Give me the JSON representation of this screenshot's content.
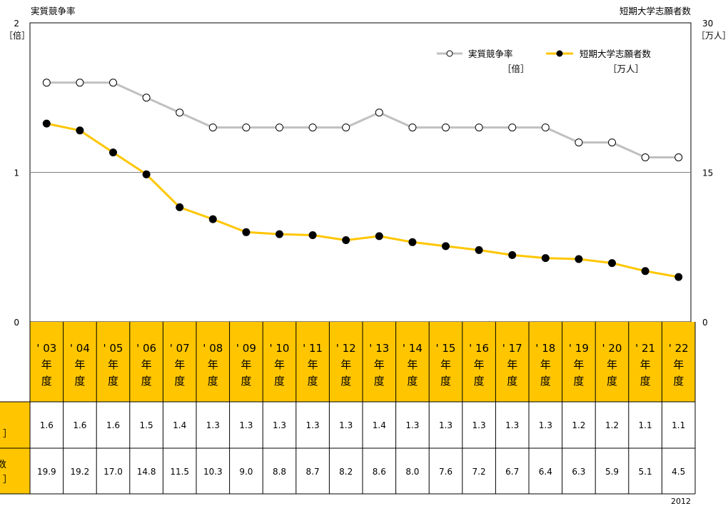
{
  "chart_data": {
    "type": "line",
    "left_axis": {
      "title": "実質競争率",
      "unit": "［倍］",
      "ticks": [
        "0",
        "1",
        "2"
      ],
      "ylim": [
        0,
        2
      ]
    },
    "right_axis": {
      "title": "短期大学志願者数",
      "unit": "［万人］",
      "ticks": [
        "0",
        "15",
        "30"
      ],
      "ylim": [
        0,
        30
      ]
    },
    "grid": "horizontal line at 1 / 15",
    "legend_position": "top-right",
    "categories": [
      {
        "year": "' 03",
        "l1": "年",
        "l2": "度"
      },
      {
        "year": "' 04",
        "l1": "年",
        "l2": "度"
      },
      {
        "year": "' 05",
        "l1": "年",
        "l2": "度"
      },
      {
        "year": "' 06",
        "l1": "年",
        "l2": "度"
      },
      {
        "year": "' 07",
        "l1": "年",
        "l2": "度"
      },
      {
        "year": "' 08",
        "l1": "年",
        "l2": "度"
      },
      {
        "year": "' 09",
        "l1": "年",
        "l2": "度"
      },
      {
        "year": "' 10",
        "l1": "年",
        "l2": "度"
      },
      {
        "year": "' 11",
        "l1": "年",
        "l2": "度"
      },
      {
        "year": "' 12",
        "l1": "年",
        "l2": "度"
      },
      {
        "year": "' 13",
        "l1": "年",
        "l2": "度"
      },
      {
        "year": "' 14",
        "l1": "年",
        "l2": "度"
      },
      {
        "year": "' 15",
        "l1": "年",
        "l2": "度"
      },
      {
        "year": "' 16",
        "l1": "年",
        "l2": "度"
      },
      {
        "year": "' 17",
        "l1": "年",
        "l2": "度"
      },
      {
        "year": "' 18",
        "l1": "年",
        "l2": "度"
      },
      {
        "year": "' 19",
        "l1": "年",
        "l2": "度"
      },
      {
        "year": "' 20",
        "l1": "年",
        "l2": "度"
      },
      {
        "year": "' 21",
        "l1": "年",
        "l2": "度"
      },
      {
        "year": "' 22",
        "l1": "年",
        "l2": "度"
      }
    ],
    "series": [
      {
        "name": "実質競争率",
        "unit": "［倍］",
        "axis": "left",
        "color": "#c0c0c0",
        "marker": "open-circle",
        "values": [
          1.6,
          1.6,
          1.6,
          1.5,
          1.4,
          1.3,
          1.3,
          1.3,
          1.3,
          1.3,
          1.4,
          1.3,
          1.3,
          1.3,
          1.3,
          1.3,
          1.2,
          1.2,
          1.1,
          1.1
        ],
        "table_label": [
          "",
          "］"
        ]
      },
      {
        "name": "短期大学志願者数",
        "unit": "［万人］",
        "axis": "right",
        "color": "#ffc600",
        "marker": "filled-circle",
        "values": [
          19.9,
          19.2,
          17.0,
          14.8,
          11.5,
          10.3,
          9.0,
          8.8,
          8.7,
          8.2,
          8.6,
          8.0,
          7.6,
          7.2,
          6.7,
          6.4,
          6.3,
          5.9,
          5.1,
          4.5
        ],
        "table_label": [
          "数",
          "］"
        ]
      }
    ],
    "table_values": [
      [
        "1.6",
        "1.6",
        "1.6",
        "1.5",
        "1.4",
        "1.3",
        "1.3",
        "1.3",
        "1.3",
        "1.3",
        "1.4",
        "1.3",
        "1.3",
        "1.3",
        "1.3",
        "1.3",
        "1.2",
        "1.2",
        "1.1",
        "1.1"
      ],
      [
        "19.9",
        "19.2",
        "17.0",
        "14.8",
        "11.5",
        "10.3",
        "9.0",
        "8.8",
        "8.7",
        "8.2",
        "8.6",
        "8.0",
        "7.6",
        "7.2",
        "6.7",
        "6.4",
        "6.3",
        "5.9",
        "5.1",
        "4.5"
      ]
    ],
    "footnote": "2012"
  },
  "colors": {
    "header_fill": "#ffc600",
    "grey_line": "#c0c0c0",
    "yellow_line": "#ffc600"
  }
}
